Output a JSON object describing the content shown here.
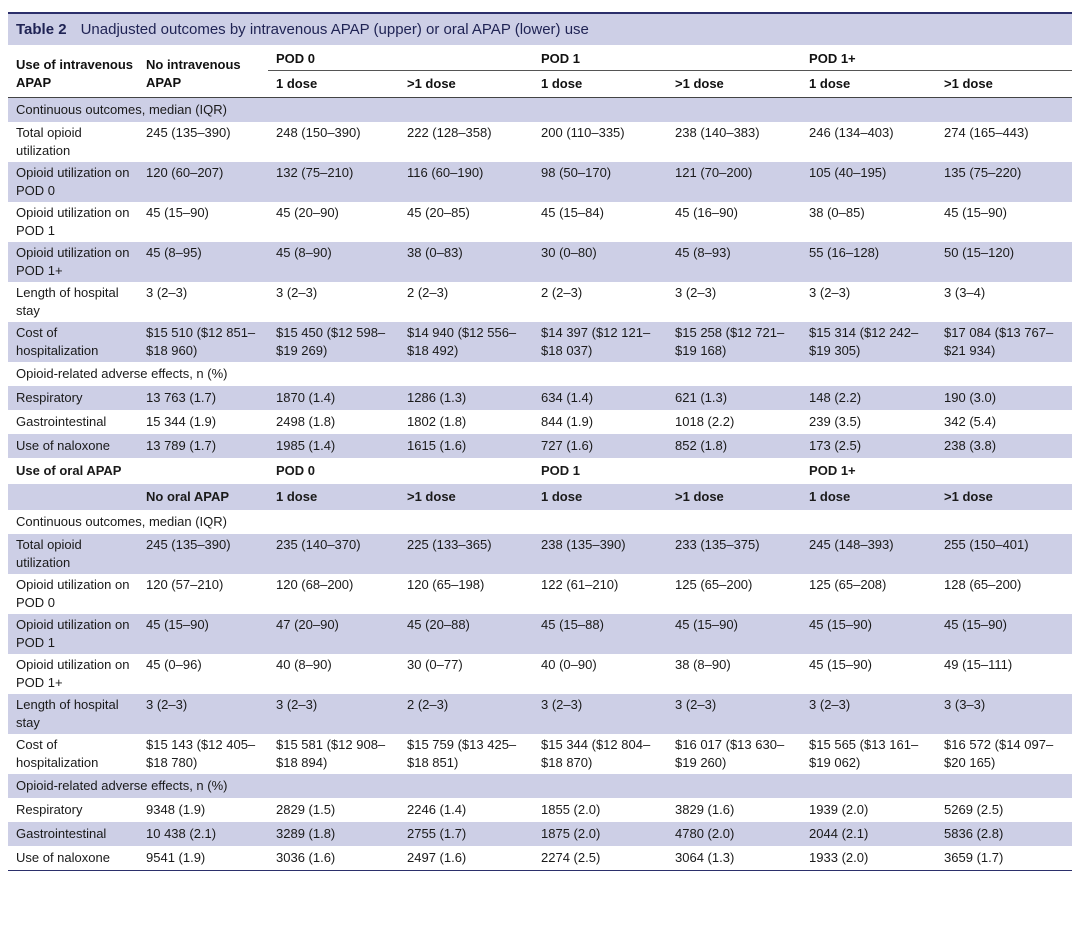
{
  "caption": {
    "label": "Table 2",
    "title": "Unadjusted outcomes by intravenous APAP (upper) or oral APAP (lower) use"
  },
  "header": {
    "col0": "Use of intravenous APAP",
    "col1": "No intravenous APAP",
    "groups": [
      "POD 0",
      "POD 1",
      "POD 1+"
    ],
    "doses": [
      "1 dose",
      ">1 dose",
      "1 dose",
      ">1 dose",
      "1 dose",
      ">1 dose"
    ]
  },
  "iv": {
    "section_continuous": "Continuous outcomes, median (IQR)",
    "continuous_rows": [
      {
        "label": "Total opioid utilization",
        "values": [
          "245 (135–390)",
          "248 (150–390)",
          "222 (128–358)",
          "200 (110–335)",
          "238 (140–383)",
          "246 (134–403)",
          "274 (165–443)"
        ]
      },
      {
        "label": "Opioid utilization on POD 0",
        "values": [
          "120 (60–207)",
          "132 (75–210)",
          "116 (60–190)",
          "98 (50–170)",
          "121 (70–200)",
          "105 (40–195)",
          "135 (75–220)"
        ]
      },
      {
        "label": "Opioid utilization on POD 1",
        "values": [
          "45 (15–90)",
          "45 (20–90)",
          "45 (20–85)",
          "45 (15–84)",
          "45 (16–90)",
          "38 (0–85)",
          "45 (15–90)"
        ]
      },
      {
        "label": "Opioid utilization on POD 1+",
        "values": [
          "45 (8–95)",
          "45 (8–90)",
          "38 (0–83)",
          "30 (0–80)",
          "45 (8–93)",
          "55 (16–128)",
          "50 (15–120)"
        ]
      },
      {
        "label": "Length of hospital stay",
        "values": [
          "3 (2–3)",
          "3 (2–3)",
          "2 (2–3)",
          "2 (2–3)",
          "3 (2–3)",
          "3 (2–3)",
          "3 (3–4)"
        ]
      },
      {
        "label": "Cost of hospitalization",
        "values": [
          "$15 510 ($12 851–$18 960)",
          "$15 450 ($12 598–$19 269)",
          "$14 940 ($12 556–$18 492)",
          "$14 397 ($12 121–$18 037)",
          "$15 258 ($12 721–$19 168)",
          "$15 314 ($12 242–$19 305)",
          "$17 084 ($13 767–$21 934)"
        ]
      }
    ],
    "section_adverse": "Opioid-related adverse effects, n (%)",
    "adverse_rows": [
      {
        "label": "Respiratory",
        "values": [
          "13 763 (1.7)",
          "1870 (1.4)",
          "1286 (1.3)",
          "634 (1.4)",
          "621 (1.3)",
          "148 (2.2)",
          "190 (3.0)"
        ]
      },
      {
        "label": "Gastrointestinal",
        "values": [
          "15 344 (1.9)",
          "2498 (1.8)",
          "1802 (1.8)",
          "844 (1.9)",
          "1018 (2.2)",
          "239 (3.5)",
          "342 (5.4)"
        ]
      },
      {
        "label": "Use of naloxone",
        "values": [
          "13 789 (1.7)",
          "1985 (1.4)",
          "1615 (1.6)",
          "727 (1.6)",
          "852 (1.8)",
          "173 (2.5)",
          "238 (3.8)"
        ]
      }
    ]
  },
  "oral": {
    "header_label": "Use of oral APAP",
    "groups": [
      "POD 0",
      "POD 1",
      "POD 1+"
    ],
    "no_label": "No oral APAP",
    "doses": [
      "1 dose",
      ">1 dose",
      "1 dose",
      ">1 dose",
      "1 dose",
      ">1 dose"
    ],
    "section_continuous": "Continuous outcomes, median (IQR)",
    "continuous_rows": [
      {
        "label": "Total opioid utilization",
        "values": [
          "245 (135–390)",
          "235 (140–370)",
          "225 (133–365)",
          "238 (135–390)",
          "233 (135–375)",
          "245 (148–393)",
          "255 (150–401)"
        ]
      },
      {
        "label": "Opioid utilization on POD 0",
        "values": [
          "120 (57–210)",
          "120 (68–200)",
          "120 (65–198)",
          "122 (61–210)",
          "125 (65–200)",
          "125 (65–208)",
          "128 (65–200)"
        ]
      },
      {
        "label": "Opioid utilization on POD 1",
        "values": [
          "45 (15–90)",
          "47 (20–90)",
          "45 (20–88)",
          "45 (15–88)",
          "45 (15–90)",
          "45 (15–90)",
          "45 (15–90)"
        ]
      },
      {
        "label": "Opioid utilization on POD 1+",
        "values": [
          "45 (0–96)",
          "40 (8–90)",
          "30 (0–77)",
          "40 (0–90)",
          "38 (8–90)",
          "45 (15–90)",
          "49 (15–111)"
        ]
      },
      {
        "label": "Length of hospital stay",
        "values": [
          "3 (2–3)",
          "3 (2–3)",
          "2 (2–3)",
          "3 (2–3)",
          "3 (2–3)",
          "3 (2–3)",
          "3 (3–3)"
        ]
      },
      {
        "label": "Cost of hospitalization",
        "values": [
          "$15 143 ($12 405–$18 780)",
          "$15 581 ($12 908–$18 894)",
          "$15 759 ($13 425–$18 851)",
          "$15 344 ($12 804–$18 870)",
          "$16 017 ($13 630–$19 260)",
          "$15 565 ($13 161–$19 062)",
          "$16 572 ($14 097–$20 165)"
        ]
      }
    ],
    "section_adverse": "Opioid-related adverse effects, n (%)",
    "adverse_rows": [
      {
        "label": "Respiratory",
        "values": [
          "9348 (1.9)",
          "2829 (1.5)",
          "2246 (1.4)",
          "1855 (2.0)",
          "3829 (1.6)",
          "1939 (2.0)",
          "5269 (2.5)"
        ]
      },
      {
        "label": "Gastrointestinal",
        "values": [
          "10 438 (2.1)",
          "3289 (1.8)",
          "2755 (1.7)",
          "1875 (2.0)",
          "4780 (2.0)",
          "2044 (2.1)",
          "5836 (2.8)"
        ]
      },
      {
        "label": "Use of naloxone",
        "values": [
          "9541 (1.9)",
          "3036 (1.6)",
          "2497 (1.6)",
          "2274 (2.5)",
          "3064 (1.3)",
          "1933 (2.0)",
          "3659 (1.7)"
        ]
      }
    ]
  }
}
